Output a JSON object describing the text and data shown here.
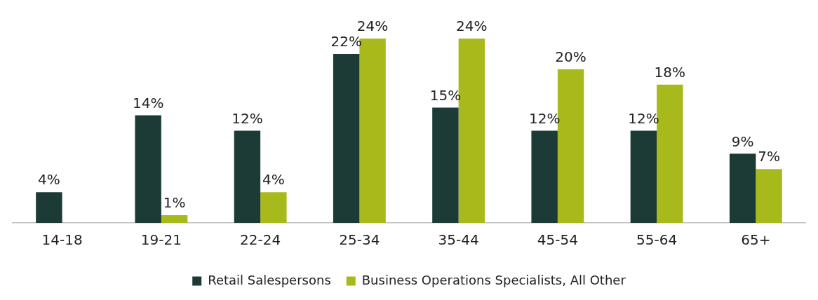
{
  "chart_data": {
    "type": "bar",
    "categories": [
      "14-18",
      "19-21",
      "22-24",
      "25-34",
      "35-44",
      "45-54",
      "55-64",
      "65+"
    ],
    "series": [
      {
        "name": "Retail Salespersons",
        "color": "#1c3a36",
        "values": [
          4,
          14,
          12,
          22,
          15,
          12,
          12,
          9
        ],
        "value_labels": [
          "4%",
          "14%",
          "12%",
          "22%",
          "15%",
          "12%",
          "12%",
          "9%"
        ]
      },
      {
        "name": "Business Operations Specialists, All Other",
        "color": "#a8b91c",
        "values": [
          null,
          1,
          4,
          24,
          24,
          20,
          18,
          7
        ],
        "value_labels": [
          null,
          "1%",
          "4%",
          "24%",
          "24%",
          "20%",
          "18%",
          "7%"
        ]
      }
    ],
    "legend": "bottom",
    "grid": false
  }
}
